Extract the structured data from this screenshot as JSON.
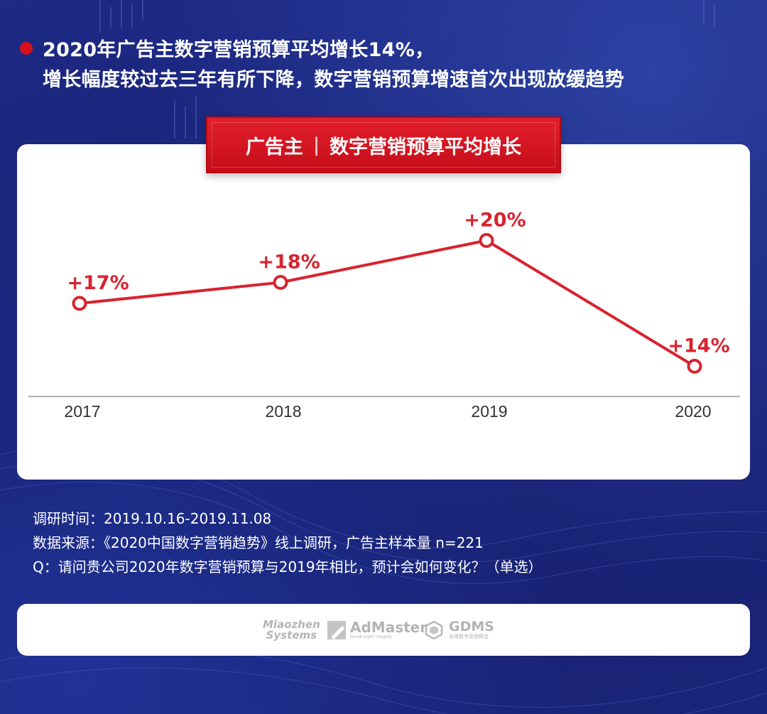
{
  "headline": {
    "line1": "2020年广告主数字营销预算平均增长14%，",
    "line2": "增长幅度较过去三年有所下降，数字营销预算增速首次出现放缓趋势"
  },
  "banner": {
    "left": "广告主",
    "separator": "|",
    "right": "数字营销预算平均增长"
  },
  "chart_data": {
    "type": "line",
    "categories": [
      "2017",
      "2018",
      "2019",
      "2020"
    ],
    "values": [
      17,
      18,
      20,
      14
    ],
    "labels": [
      "+17%",
      "+18%",
      "+20%",
      "+14%"
    ],
    "title": "广告主 | 数字营销预算平均增长",
    "unit": "%",
    "grid": false,
    "line_color": "#d8232f"
  },
  "notes": {
    "survey_time": "调研时间：2019.10.16-2019.11.08",
    "source": "数据来源：《2020中国数字营销趋势》线上调研，广告主样本量 n=221",
    "question": "Q：请问贵公司2020年数字营销预算与2019年相比，预计会如何变化？（单选）"
  },
  "logos": {
    "miaozhen_1": "Miaozhen",
    "miaozhen_2": "Systems",
    "admaster": "AdMaster",
    "admaster_sub": "break-sight insights",
    "gdms": "GDMS",
    "gdms_sub": "全球数字营销峰会"
  },
  "colors": {
    "accent_red": "#d8232f",
    "background_blue": "#1b2578",
    "card": "#ffffff"
  }
}
